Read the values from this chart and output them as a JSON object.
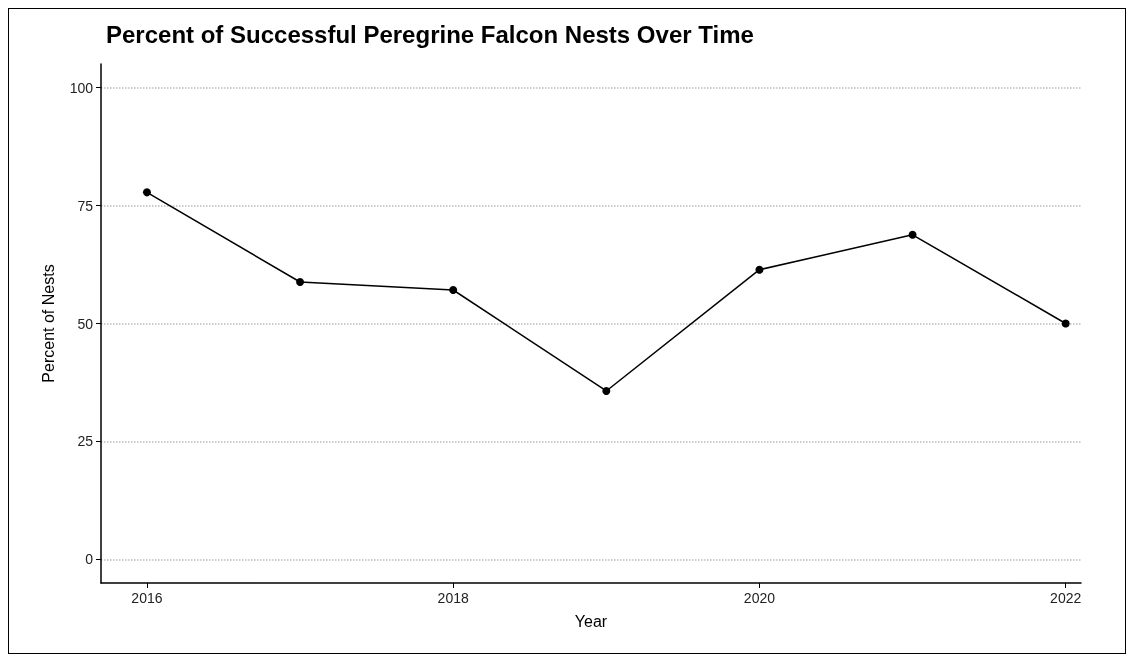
{
  "chart_data": {
    "type": "line",
    "title": "Percent of Successful Peregrine Falcon Nests Over Time",
    "xlabel": "Year",
    "ylabel": "Percent of Nests",
    "x": [
      2016,
      2017,
      2018,
      2019,
      2020,
      2021,
      2022
    ],
    "series": [
      {
        "color": "#000000",
        "values": [
          77.8,
          58.8,
          57.1,
          35.7,
          61.4,
          68.8,
          50
        ]
      }
    ],
    "xlim": [
      2015.7,
      2022.1
    ],
    "xticks": [
      2016,
      2018,
      2020,
      2022
    ],
    "ylim": [
      -5,
      105
    ],
    "yticks": [
      0,
      25,
      50,
      75,
      100
    ],
    "grid": "y",
    "marker": "circle",
    "line_style": "solid"
  }
}
